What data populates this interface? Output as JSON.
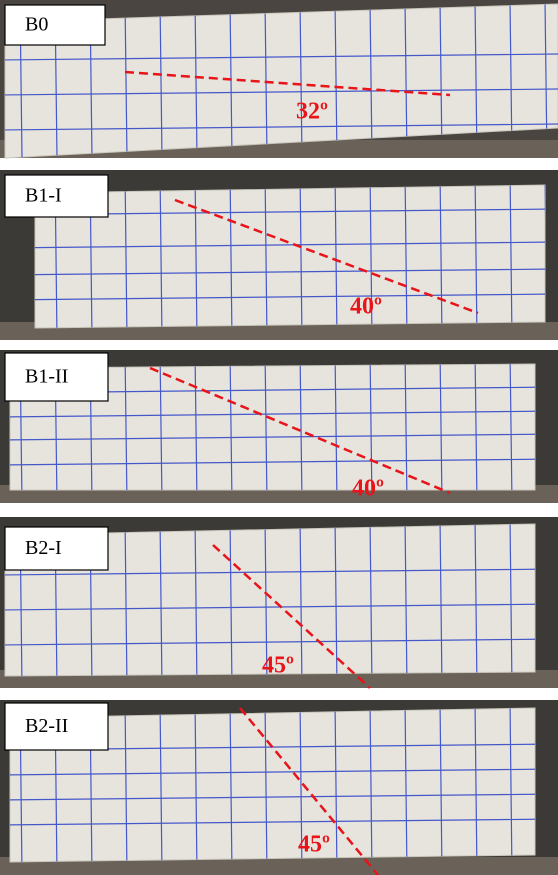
{
  "panels": [
    {
      "label": "B0",
      "angle": "32º"
    },
    {
      "label": "B1-I",
      "angle": "40º"
    },
    {
      "label": "B1-II",
      "angle": "40º"
    },
    {
      "label": "B2-I",
      "angle": "45º"
    },
    {
      "label": "B2-II",
      "angle": "45º"
    }
  ]
}
